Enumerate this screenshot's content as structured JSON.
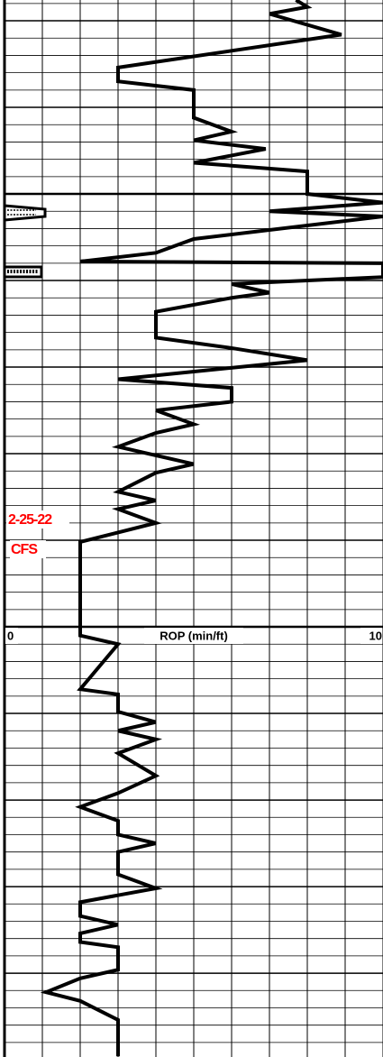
{
  "chart_data": {
    "type": "line",
    "orientation": "vertical",
    "xlabel": "ROP (min/ft)",
    "xlim": [
      0,
      10
    ],
    "xticks": [
      0,
      1,
      2,
      3,
      4,
      5,
      6,
      7,
      8,
      9,
      10
    ],
    "ylim": [
      -1.2,
      59.84
    ],
    "yticks": [
      -1,
      0,
      1,
      2,
      3,
      4,
      5,
      6,
      7,
      8,
      9,
      10,
      11,
      12,
      13,
      14,
      15,
      16,
      17,
      18,
      19,
      20,
      21,
      22,
      23,
      24,
      25,
      26,
      27,
      28,
      29,
      30,
      31,
      32,
      33,
      34,
      35,
      36,
      37,
      38,
      39,
      40,
      41,
      42,
      43,
      44,
      45,
      46,
      47,
      48,
      49,
      50,
      51,
      52,
      53,
      54,
      55,
      56,
      57,
      58,
      59
    ],
    "major_yticks": [
      0,
      5,
      10,
      15,
      20,
      25,
      30,
      35,
      40,
      45,
      50,
      55
    ],
    "heavy_yticks": [
      10,
      35
    ],
    "grid": true,
    "series": [
      {
        "color": "#000000",
        "values": [
          7.7,
          8.0,
          7.0,
          8.9,
          3.0,
          3.0,
          5.0,
          5.0,
          6.0,
          5.0,
          6.9,
          5.0,
          8.0,
          8.0,
          10.0,
          7.0,
          10.0,
          5.0,
          4.0,
          2.0,
          10.0,
          10.0,
          6.0,
          7.0,
          6.0,
          4.0,
          4.0,
          6.0,
          8.0,
          3.0,
          6.0,
          6.0,
          4.0,
          5.0,
          4.0,
          3.0,
          5.0,
          4.0,
          3.0,
          4.0,
          3.0,
          4.0,
          2.0,
          2.0,
          3.0,
          2.0,
          3.0,
          3.0,
          4.0,
          3.0,
          4.0,
          3.0,
          4.0,
          3.0,
          2.0,
          3.0,
          3.0,
          4.0,
          3.0,
          3.0,
          4.0,
          2.0,
          2.0,
          3.0,
          2.0,
          2.0,
          3.0,
          3.0,
          2.0,
          1.1,
          2.0,
          3.0,
          3.0
        ],
        "depth": [
          -1.2,
          -0.8,
          -0.4,
          0.8,
          2.7,
          3.5,
          4.0,
          5.6,
          6.4,
          6.9,
          7.4,
          8.2,
          8.7,
          10.0,
          10.5,
          11.0,
          11.3,
          12.6,
          13.4,
          13.9,
          14.0,
          14.8,
          15.2,
          15.7,
          16.0,
          16.8,
          18.3,
          18.9,
          19.6,
          20.7,
          21.2,
          22.0,
          22.5,
          23.3,
          23.8,
          24.6,
          25.6,
          26.1,
          27.2,
          27.7,
          28.2,
          29.0,
          30.1,
          35.5,
          36.0,
          38.6,
          38.9,
          39.9,
          40.5,
          41.0,
          41.5,
          42.3,
          43.6,
          44.6,
          45.4,
          46.2,
          47.0,
          47.5,
          48.0,
          49.3,
          50.1,
          50.9,
          51.7,
          52.2,
          52.7,
          53.2,
          53.5,
          54.8,
          55.3,
          56.1,
          56.6,
          57.7,
          59.8
        ]
      }
    ],
    "annotations": [
      {
        "text": "2-25-22",
        "color": "#ff0000"
      },
      {
        "text": "CFS",
        "color": "#ff0000"
      }
    ]
  }
}
